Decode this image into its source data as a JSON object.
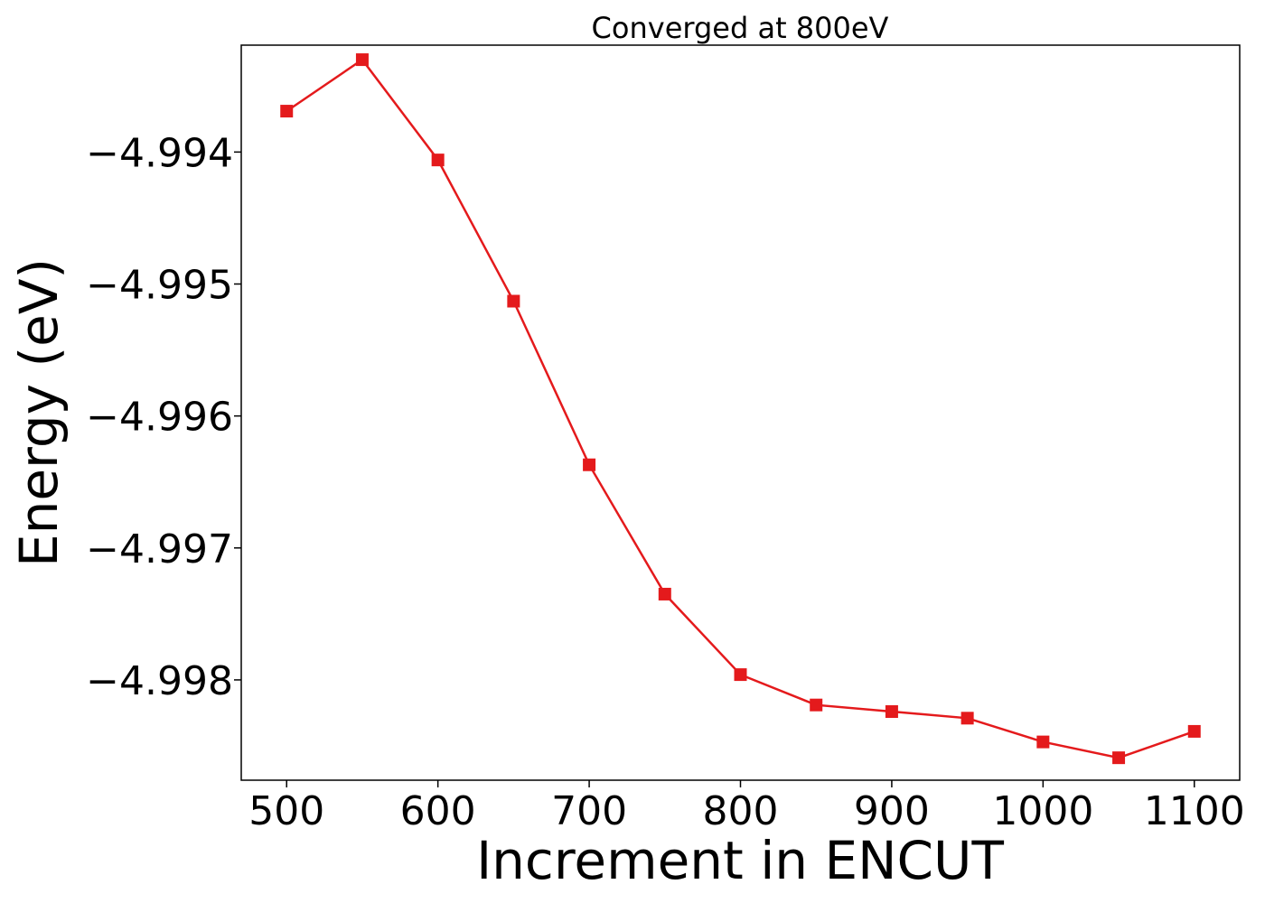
{
  "chart_data": {
    "type": "line",
    "title": "Converged at 800eV",
    "xlabel": "Increment in ENCUT",
    "ylabel": "Energy (eV)",
    "xlim": [
      470,
      1130
    ],
    "ylim": [
      -4.99876,
      -4.99319
    ],
    "x_ticks": [
      500,
      600,
      700,
      800,
      900,
      1000,
      1100
    ],
    "x_tick_labels": [
      "500",
      "600",
      "700",
      "800",
      "900",
      "1000",
      "1100"
    ],
    "y_ticks": [
      -4.994,
      -4.995,
      -4.996,
      -4.997,
      -4.998
    ],
    "y_tick_labels": [
      "−4.994",
      "−4.995",
      "−4.996",
      "−4.997",
      "−4.998"
    ],
    "grid": false,
    "series": [
      {
        "color": "#e41a1c",
        "marker": "square",
        "x": [
          500,
          550,
          600,
          650,
          700,
          750,
          800,
          850,
          900,
          950,
          1000,
          1050,
          1100
        ],
        "y": [
          -4.99369,
          -4.9933,
          -4.99406,
          -4.99513,
          -4.99637,
          -4.99735,
          -4.99796,
          -4.99819,
          -4.99824,
          -4.99829,
          -4.99847,
          -4.99859,
          -4.99839
        ]
      }
    ]
  }
}
